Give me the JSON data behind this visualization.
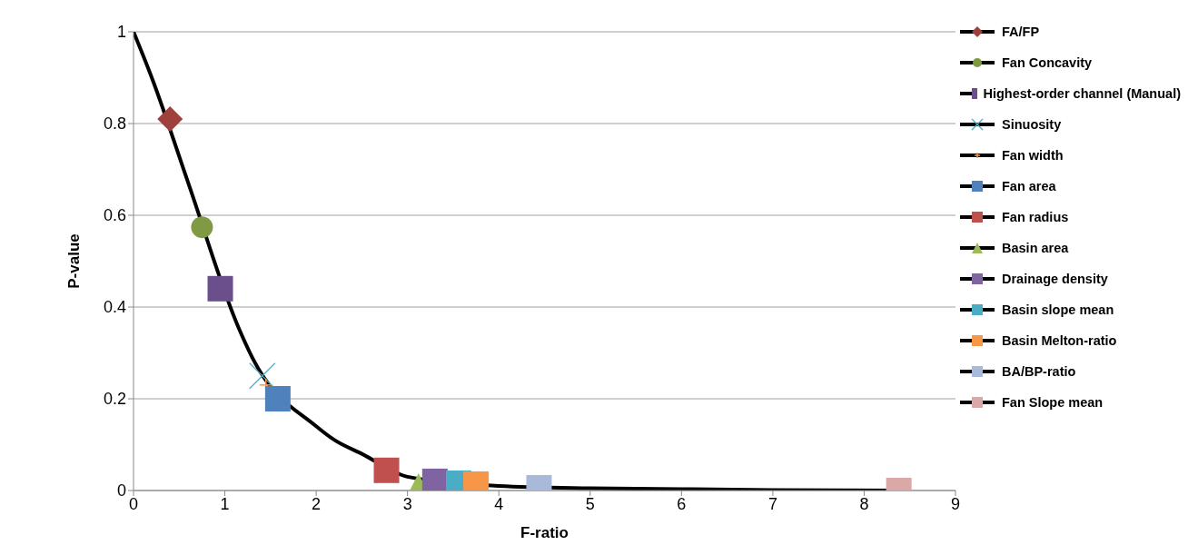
{
  "chart_data": {
    "type": "scatter",
    "xlabel": "F-ratio",
    "ylabel": "P-value",
    "xlim": [
      0,
      9
    ],
    "xticks": [
      0,
      1,
      2,
      3,
      4,
      5,
      6,
      7,
      8,
      9
    ],
    "ylim": [
      0,
      1
    ],
    "yticks": [
      0,
      0.2,
      0.4,
      0.6,
      0.8,
      1
    ],
    "grid": "y",
    "legend": "right",
    "series": [
      {
        "type": "line",
        "color": "#000000",
        "marker": "none",
        "line_style": "solid",
        "x": [
          0,
          0.2,
          0.6,
          1.15,
          1.3,
          2,
          2.2,
          2.5,
          3,
          4,
          5,
          6,
          7,
          8.4
        ],
        "values": [
          1,
          0.9,
          0.67,
          0.355,
          0.29,
          0.14,
          0.11,
          0.08,
          0.03,
          0.01,
          0.005,
          0.003,
          0.001,
          0
        ]
      },
      {
        "name": "FA/FP",
        "color": "#a0403c",
        "marker": "diamond",
        "x": [
          0.4
        ],
        "values": [
          0.81
        ]
      },
      {
        "name": "Fan Concavity",
        "color": "#7f9a43",
        "marker": "circle",
        "x": [
          0.75
        ],
        "values": [
          0.574
        ]
      },
      {
        "name": "Highest-order channel (Manual)",
        "color": "#6a4f8c",
        "marker": "square",
        "x": [
          0.95
        ],
        "values": [
          0.44
        ]
      },
      {
        "name": "Sinuosity",
        "color": "#4bacc6",
        "marker": "cross",
        "x": [
          1.41
        ],
        "values": [
          0.25
        ]
      },
      {
        "name": "Fan width",
        "color": "#f79646",
        "marker": "plus",
        "x": [
          1.45
        ],
        "values": [
          0.23
        ]
      },
      {
        "name": "Fan area",
        "color": "#4f81bd",
        "marker": "square",
        "x": [
          1.58
        ],
        "values": [
          0.2
        ]
      },
      {
        "name": "Fan radius",
        "color": "#c0504d",
        "marker": "square",
        "x": [
          2.77
        ],
        "values": [
          0.044
        ]
      },
      {
        "name": "Basin area",
        "color": "#9bbb59",
        "marker": "triangle",
        "x": [
          3.12
        ],
        "values": [
          0.01
        ]
      },
      {
        "name": "Drainage density",
        "color": "#8064a2",
        "marker": "square",
        "x": [
          3.3
        ],
        "values": [
          0.02
        ]
      },
      {
        "name": "Basin slope mean",
        "color": "#4bacc6",
        "marker": "square",
        "x": [
          3.56
        ],
        "values": [
          0.016
        ]
      },
      {
        "name": "Basin Melton-ratio",
        "color": "#f79646",
        "marker": "square",
        "x": [
          3.75
        ],
        "values": [
          0.014
        ]
      },
      {
        "name": "BA/BP-ratio",
        "color": "#a9b9d9",
        "marker": "square",
        "x": [
          4.44
        ],
        "values": [
          0.006
        ]
      },
      {
        "name": "Fan Slope mean",
        "color": "#dba8a8",
        "marker": "square",
        "x": [
          8.38
        ],
        "values": [
          0
        ]
      }
    ]
  }
}
